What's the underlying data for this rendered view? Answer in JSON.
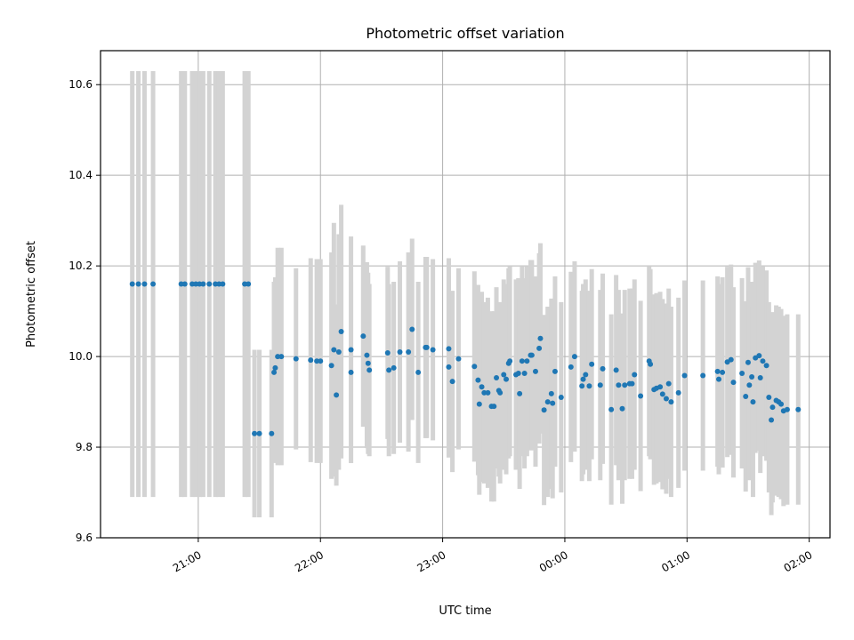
{
  "chart_data": {
    "type": "scatter",
    "title": "Photometric offset variation",
    "xlabel": "UTC time",
    "ylabel": "Photometric offset",
    "x_unit": "hours UTC (values past 24 are after midnight)",
    "xlim": [
      20.2,
      26.17
    ],
    "ylim": [
      9.6,
      10.675
    ],
    "x_ticks": [
      {
        "value": 21,
        "label": "21:00"
      },
      {
        "value": 22,
        "label": "22:00"
      },
      {
        "value": 23,
        "label": "23:00"
      },
      {
        "value": 24,
        "label": "00:00"
      },
      {
        "value": 25,
        "label": "01:00"
      },
      {
        "value": 26,
        "label": "02:00"
      }
    ],
    "y_ticks": [
      {
        "value": 9.6,
        "label": "9.6"
      },
      {
        "value": 9.8,
        "label": "9.8"
      },
      {
        "value": 10.0,
        "label": "10.0"
      },
      {
        "value": 10.2,
        "label": "10.2"
      },
      {
        "value": 10.4,
        "label": "10.4"
      },
      {
        "value": 10.6,
        "label": "10.6"
      }
    ],
    "grid": true,
    "marker_color": "#1f77b4",
    "errorbar_color": "#d3d3d3",
    "series": [
      {
        "points": [
          [
            20.46,
            10.16,
            0.47
          ],
          [
            20.51,
            10.16,
            0.47
          ],
          [
            20.56,
            10.16,
            0.47
          ],
          [
            20.63,
            10.16,
            0.47
          ],
          [
            20.86,
            10.16,
            0.47
          ],
          [
            20.89,
            10.16,
            0.47
          ],
          [
            20.95,
            10.16,
            0.47
          ],
          [
            20.98,
            10.16,
            0.47
          ],
          [
            21.01,
            10.16,
            0.47
          ],
          [
            21.04,
            10.16,
            0.47
          ],
          [
            21.09,
            10.16,
            0.47
          ],
          [
            21.14,
            10.16,
            0.47
          ],
          [
            21.17,
            10.16,
            0.47
          ],
          [
            21.2,
            10.16,
            0.47
          ],
          [
            21.38,
            10.16,
            0.47
          ],
          [
            21.41,
            10.16,
            0.47
          ],
          [
            21.46,
            9.83,
            0.185
          ],
          [
            21.5,
            9.83,
            0.185
          ],
          [
            21.6,
            9.83,
            0.185
          ],
          [
            21.62,
            9.965,
            0.2
          ],
          [
            21.63,
            9.975,
            0.2
          ],
          [
            21.65,
            10.0,
            0.24
          ],
          [
            21.68,
            10.0,
            0.24
          ],
          [
            21.8,
            9.995,
            0.2
          ],
          [
            21.92,
            9.992,
            0.225
          ],
          [
            21.97,
            9.99,
            0.225
          ],
          [
            22.0,
            9.99,
            0.225
          ],
          [
            22.09,
            9.98,
            0.25
          ],
          [
            22.11,
            10.015,
            0.28
          ],
          [
            22.13,
            9.915,
            0.2
          ],
          [
            22.15,
            10.01,
            0.26
          ],
          [
            22.17,
            10.055,
            0.28
          ],
          [
            22.25,
            9.965,
            0.2
          ],
          [
            22.25,
            10.015,
            0.25
          ],
          [
            22.35,
            10.045,
            0.2
          ],
          [
            22.38,
            10.003,
            0.205
          ],
          [
            22.39,
            9.985,
            0.2
          ],
          [
            22.4,
            9.97,
            0.19
          ],
          [
            22.55,
            10.008,
            0.19
          ],
          [
            22.56,
            9.97,
            0.19
          ],
          [
            22.6,
            9.975,
            0.19
          ],
          [
            22.65,
            10.01,
            0.2
          ],
          [
            22.72,
            10.01,
            0.22
          ],
          [
            22.75,
            10.06,
            0.2
          ],
          [
            22.8,
            9.965,
            0.2
          ],
          [
            22.86,
            10.02,
            0.2
          ],
          [
            22.87,
            10.02,
            0.2
          ],
          [
            22.92,
            10.015,
            0.2
          ],
          [
            23.05,
            9.977,
            0.2
          ],
          [
            23.05,
            10.017,
            0.2
          ],
          [
            23.08,
            9.945,
            0.2
          ],
          [
            23.13,
            9.995,
            0.2
          ],
          [
            23.26,
            9.978,
            0.21
          ],
          [
            23.29,
            9.948,
            0.21
          ],
          [
            23.3,
            9.895,
            0.2
          ],
          [
            23.32,
            9.933,
            0.21
          ],
          [
            23.34,
            9.92,
            0.2
          ],
          [
            23.37,
            9.92,
            0.21
          ],
          [
            23.4,
            9.89,
            0.21
          ],
          [
            23.42,
            9.89,
            0.21
          ],
          [
            23.44,
            9.953,
            0.2
          ],
          [
            23.46,
            9.925,
            0.19
          ],
          [
            23.47,
            9.92,
            0.2
          ],
          [
            23.5,
            9.96,
            0.21
          ],
          [
            23.52,
            9.95,
            0.21
          ],
          [
            23.54,
            9.985,
            0.21
          ],
          [
            23.55,
            9.99,
            0.21
          ],
          [
            23.6,
            9.96,
            0.21
          ],
          [
            23.62,
            9.963,
            0.21
          ],
          [
            23.63,
            9.918,
            0.21
          ],
          [
            23.65,
            9.99,
            0.21
          ],
          [
            23.67,
            9.963,
            0.21
          ],
          [
            23.69,
            9.99,
            0.21
          ],
          [
            23.72,
            10.003,
            0.21
          ],
          [
            23.73,
            10.003,
            0.21
          ],
          [
            23.76,
            9.967,
            0.21
          ],
          [
            23.79,
            10.018,
            0.21
          ],
          [
            23.8,
            10.04,
            0.21
          ],
          [
            23.83,
            9.882,
            0.21
          ],
          [
            23.86,
            9.9,
            0.21
          ],
          [
            23.89,
            9.918,
            0.21
          ],
          [
            23.9,
            9.897,
            0.21
          ],
          [
            23.92,
            9.967,
            0.21
          ],
          [
            23.97,
            9.91,
            0.21
          ],
          [
            24.05,
            9.977,
            0.21
          ],
          [
            24.08,
            10.0,
            0.21
          ],
          [
            24.14,
            9.935,
            0.21
          ],
          [
            24.15,
            9.95,
            0.21
          ],
          [
            24.17,
            9.96,
            0.21
          ],
          [
            24.2,
            9.935,
            0.21
          ],
          [
            24.22,
            9.983,
            0.21
          ],
          [
            24.29,
            9.937,
            0.21
          ],
          [
            24.31,
            9.973,
            0.21
          ],
          [
            24.38,
            9.883,
            0.21
          ],
          [
            24.42,
            9.97,
            0.21
          ],
          [
            24.44,
            9.937,
            0.21
          ],
          [
            24.47,
            9.885,
            0.21
          ],
          [
            24.49,
            9.937,
            0.21
          ],
          [
            24.53,
            9.94,
            0.21
          ],
          [
            24.55,
            9.94,
            0.21
          ],
          [
            24.57,
            9.96,
            0.21
          ],
          [
            24.62,
            9.913,
            0.21
          ],
          [
            24.69,
            9.99,
            0.21
          ],
          [
            24.7,
            9.983,
            0.21
          ],
          [
            24.73,
            9.927,
            0.21
          ],
          [
            24.75,
            9.93,
            0.21
          ],
          [
            24.78,
            9.933,
            0.21
          ],
          [
            24.8,
            9.917,
            0.21
          ],
          [
            24.83,
            9.907,
            0.21
          ],
          [
            24.85,
            9.94,
            0.21
          ],
          [
            24.87,
            9.9,
            0.21
          ],
          [
            24.93,
            9.92,
            0.21
          ],
          [
            24.98,
            9.958,
            0.21
          ],
          [
            25.13,
            9.958,
            0.21
          ],
          [
            25.25,
            9.967,
            0.21
          ],
          [
            25.26,
            9.95,
            0.21
          ],
          [
            25.29,
            9.965,
            0.21
          ],
          [
            25.33,
            9.988,
            0.21
          ],
          [
            25.36,
            9.993,
            0.21
          ],
          [
            25.38,
            9.943,
            0.21
          ],
          [
            25.45,
            9.963,
            0.21
          ],
          [
            25.48,
            9.912,
            0.21
          ],
          [
            25.5,
            9.987,
            0.21
          ],
          [
            25.51,
            9.937,
            0.21
          ],
          [
            25.53,
            9.955,
            0.21
          ],
          [
            25.54,
            9.9,
            0.21
          ],
          [
            25.56,
            9.997,
            0.21
          ],
          [
            25.59,
            10.002,
            0.21
          ],
          [
            25.6,
            9.953,
            0.21
          ],
          [
            25.62,
            9.99,
            0.21
          ],
          [
            25.65,
            9.98,
            0.21
          ],
          [
            25.67,
            9.91,
            0.21
          ],
          [
            25.69,
            9.86,
            0.21
          ],
          [
            25.7,
            9.888,
            0.21
          ],
          [
            25.73,
            9.903,
            0.21
          ],
          [
            25.75,
            9.9,
            0.21
          ],
          [
            25.77,
            9.895,
            0.21
          ],
          [
            25.79,
            9.88,
            0.21
          ],
          [
            25.82,
            9.883,
            0.21
          ],
          [
            25.91,
            9.883,
            0.21
          ]
        ]
      }
    ]
  }
}
